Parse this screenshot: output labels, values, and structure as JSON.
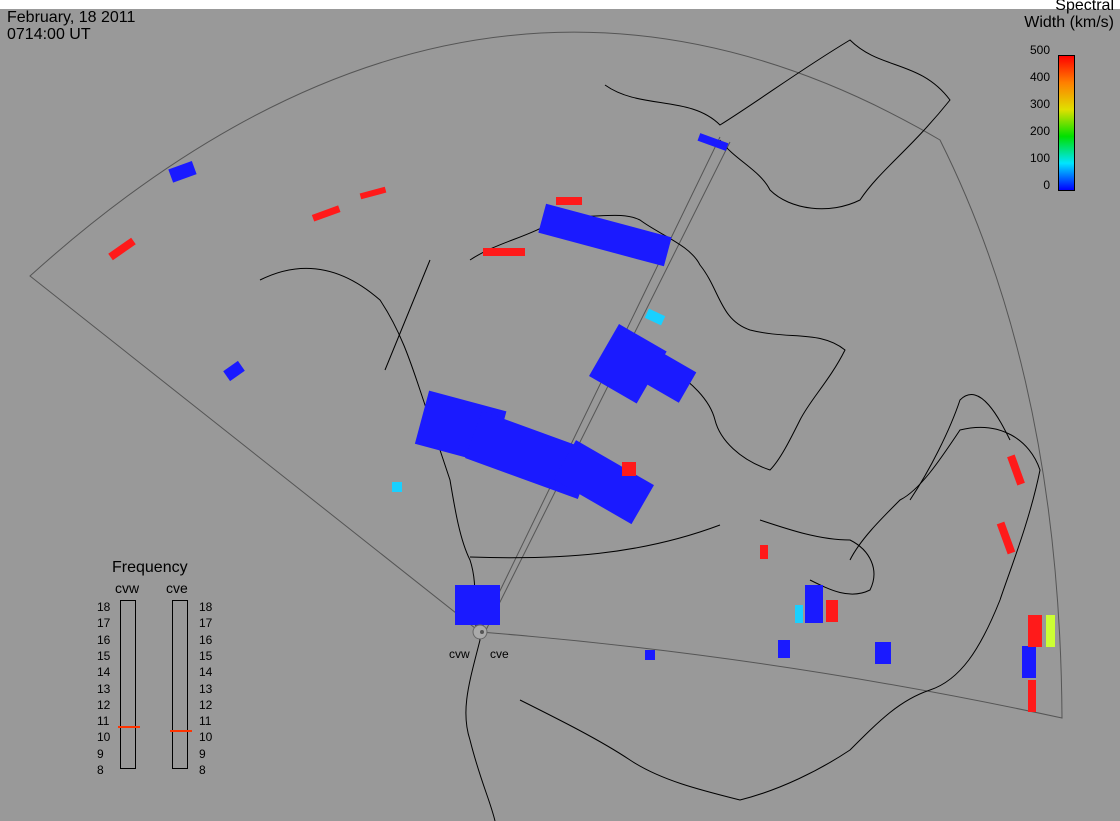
{
  "date_line": "February, 18 2011",
  "time_line": "0714:00 UT",
  "colorbar": {
    "title_line1": "Spectral",
    "title_line2": "Width (km/s)",
    "ticks": [
      "500",
      "400",
      "300",
      "200",
      "100",
      "0"
    ],
    "range": [
      0,
      500
    ]
  },
  "frequency_panel": {
    "title": "Frequency",
    "radars": [
      {
        "name": "cvw",
        "value_mhz": 10.8
      },
      {
        "name": "cve",
        "value_mhz": 10.6
      }
    ],
    "scale": [
      "18",
      "17",
      "16",
      "15",
      "14",
      "13",
      "12",
      "11",
      "10",
      "9",
      "8"
    ]
  },
  "radar_sites": [
    "cvw",
    "cve"
  ],
  "colors": {
    "background": "#999999",
    "low_width": "#1a1aff",
    "high_width": "#ff1a1a",
    "mid_width": "#1ad0ff"
  }
}
